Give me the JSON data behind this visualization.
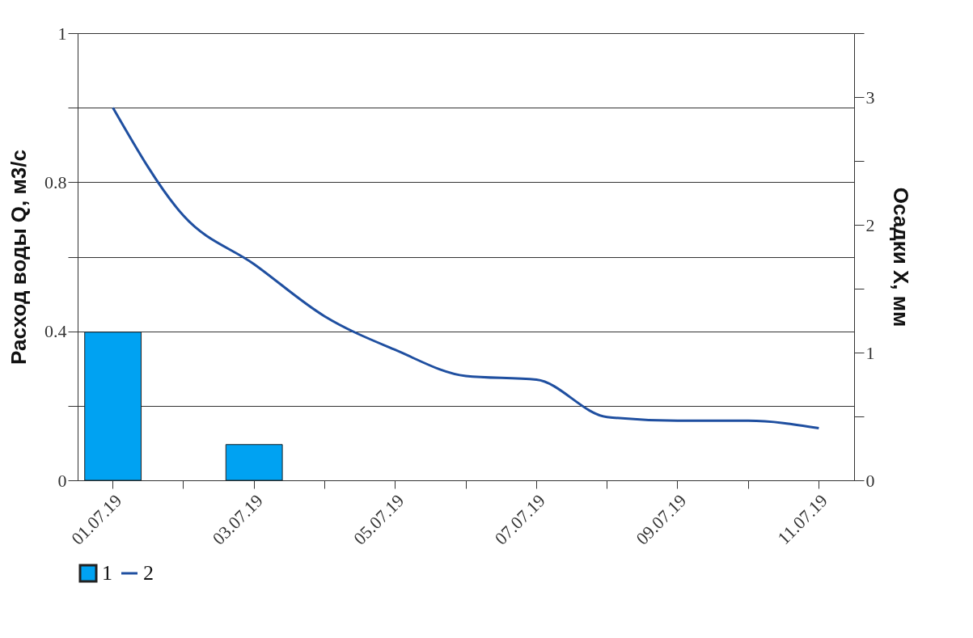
{
  "chart_data": {
    "type": "bar",
    "categories": [
      "01.07.19",
      null,
      "03.07.19",
      null,
      "05.07.19",
      null,
      "07.07.19",
      null,
      "09.07.19",
      null,
      "11.07.19"
    ],
    "series": [
      {
        "name": "1",
        "axis": "y2",
        "color": "#00a2f2",
        "values": [
          1.16,
          null,
          0.28,
          null,
          null,
          null,
          null,
          null,
          null,
          null,
          null
        ]
      },
      {
        "name": "2",
        "type": "line",
        "color": "#1f4fa0",
        "values": [
          1.0,
          0.71,
          0.58,
          0.44,
          0.35,
          0.28,
          0.27,
          0.17,
          0.16,
          0.16,
          0.14
        ]
      }
    ],
    "ylabel": "Расход воды Q, м3/с",
    "y2label": "Осадки X, мм",
    "ylim": [
      0,
      1.2
    ],
    "yticks": [
      0,
      {
        "value": 0.2,
        "label": null
      },
      0.4,
      {
        "value": 0.6,
        "label": null
      },
      0.8,
      {
        "value": 1.0,
        "label": null
      },
      {
        "value": 1.2,
        "label": "1"
      }
    ],
    "y2lim": [
      0,
      3.5
    ],
    "y2ticks": [
      0,
      {
        "value": 0.5,
        "label": null
      },
      1,
      {
        "value": 1.5,
        "label": null
      },
      2,
      {
        "value": 2.5,
        "label": null
      },
      3,
      {
        "value": 3.5,
        "label": null
      }
    ],
    "grid": "y",
    "legend": "bottom",
    "line_style": "solid",
    "marker": "none"
  }
}
